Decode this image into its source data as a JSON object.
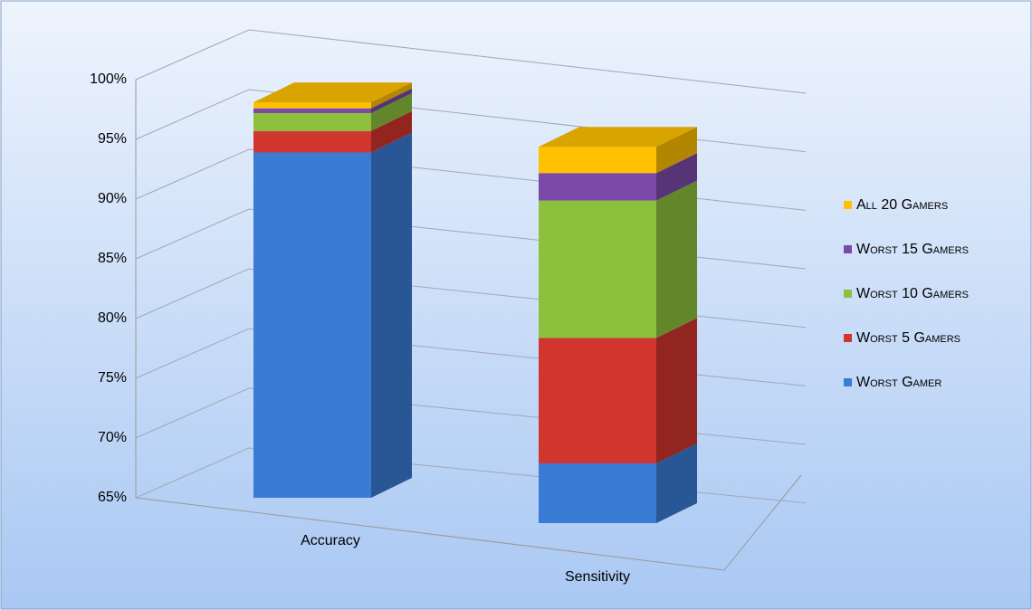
{
  "chart_data": {
    "type": "bar3d_stacked",
    "categories": [
      "Accuracy",
      "Sensitivity"
    ],
    "series": [
      {
        "name": "Worst Gamer",
        "color": "#3a7bd5",
        "values": [
          93.9,
          70.0
        ]
      },
      {
        "name": "Worst 5 Gamers",
        "color": "#d0352e",
        "values": [
          1.8,
          10.5
        ]
      },
      {
        "name": "Worst 10 Gamers",
        "color": "#8dc03c",
        "values": [
          1.5,
          11.5
        ]
      },
      {
        "name": "Worst 15 Gamers",
        "color": "#7b4aa8",
        "values": [
          0.4,
          2.3
        ]
      },
      {
        "name": "All 20 Gamers",
        "color": "#ffc000",
        "values": [
          0.5,
          2.2
        ]
      }
    ],
    "ylim": [
      65,
      100
    ],
    "yticks": [
      {
        "value": 65,
        "label": "65%"
      },
      {
        "value": 70,
        "label": "70%"
      },
      {
        "value": 75,
        "label": "75%"
      },
      {
        "value": 80,
        "label": "80%"
      },
      {
        "value": 85,
        "label": "85%"
      },
      {
        "value": 90,
        "label": "90%"
      },
      {
        "value": 95,
        "label": "95%"
      },
      {
        "value": 100,
        "label": "100%"
      }
    ],
    "grid": true,
    "legend": "right"
  }
}
